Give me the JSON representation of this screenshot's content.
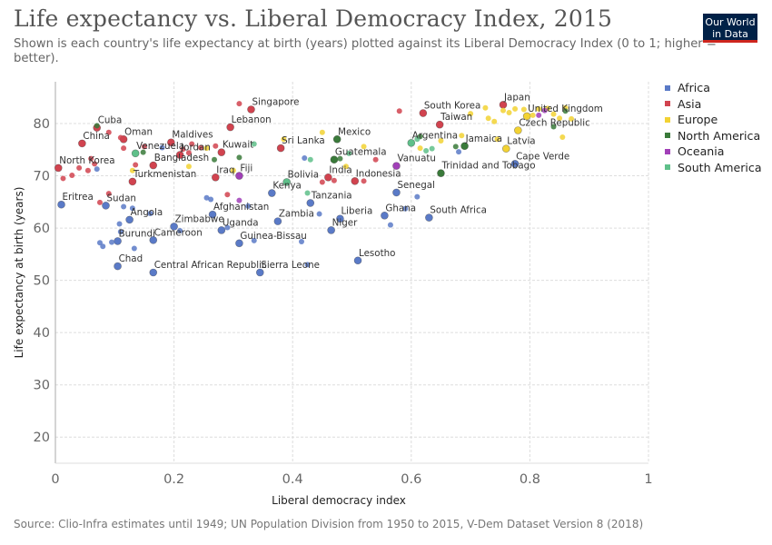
{
  "title": "Life expectancy vs. Liberal Democracy Index, 2015",
  "subtitle": "Shown is each country's life expectancy at birth (years) plotted against its Liberal Democracy Index (0 to 1; higher = better).",
  "logo": {
    "line1": "Our World",
    "line2": "in Data"
  },
  "source": "Source: Clio-Infra estimates until 1949; UN Population Division from 1950 to 2015, V-Dem Dataset Version 8 (2018)",
  "colors": {
    "Africa": "#5a7ac7",
    "Asia": "#d1434f",
    "Europe": "#f2d233",
    "North America": "#3a7a3a",
    "Oceania": "#a140b8",
    "South America": "#5fc08a"
  },
  "chart_data": {
    "type": "scatter",
    "title": "Life expectancy vs. Liberal Democracy Index, 2015",
    "xlabel": "Liberal democracy index",
    "ylabel": "Life expectancy at birth (years)",
    "xlim": [
      0,
      1
    ],
    "ylim": [
      15,
      88
    ],
    "xticks": [
      0,
      0.2,
      0.4,
      0.6,
      0.8,
      1
    ],
    "xtick_labels": [
      "0",
      "0.2",
      "0.4",
      "0.6",
      "0.8",
      "1"
    ],
    "yticks": [
      20,
      30,
      40,
      50,
      60,
      70,
      80
    ],
    "ytick_labels": [
      "20",
      "30",
      "40",
      "50",
      "60",
      "70",
      "80"
    ],
    "grid": true,
    "legend_position": "right",
    "series": [
      {
        "name": "Africa",
        "points": [
          {
            "x": 0.01,
            "y": 64.5,
            "label": "Eritrea"
          },
          {
            "x": 0.085,
            "y": 64.3,
            "label": "Sudan"
          },
          {
            "x": 0.125,
            "y": 61.6,
            "label": "Angola"
          },
          {
            "x": 0.105,
            "y": 57.5,
            "label": "Burundi"
          },
          {
            "x": 0.105,
            "y": 52.7,
            "label": "Chad"
          },
          {
            "x": 0.165,
            "y": 57.7,
            "label": "Cameroon"
          },
          {
            "x": 0.165,
            "y": 51.5,
            "label": "Central African Republic"
          },
          {
            "x": 0.2,
            "y": 60.3,
            "label": "Zimbabwe"
          },
          {
            "x": 0.265,
            "y": 62.6,
            "label": "Afghanistan"
          },
          {
            "x": 0.28,
            "y": 59.6,
            "label": "Uganda"
          },
          {
            "x": 0.31,
            "y": 57.1,
            "label": "Guinea-Bissau"
          },
          {
            "x": 0.345,
            "y": 51.5,
            "label": "Sierra Leone"
          },
          {
            "x": 0.365,
            "y": 66.7,
            "label": "Kenya"
          },
          {
            "x": 0.375,
            "y": 61.3,
            "label": "Zambia"
          },
          {
            "x": 0.43,
            "y": 64.8,
            "label": "Tanzania"
          },
          {
            "x": 0.465,
            "y": 59.6,
            "label": "Niger"
          },
          {
            "x": 0.48,
            "y": 61.8,
            "label": "Liberia"
          },
          {
            "x": 0.51,
            "y": 53.8,
            "label": "Lesotho"
          },
          {
            "x": 0.555,
            "y": 62.4,
            "label": "Ghana"
          },
          {
            "x": 0.575,
            "y": 66.8,
            "label": "Senegal"
          },
          {
            "x": 0.63,
            "y": 62,
            "label": "South Africa"
          },
          {
            "x": 0.775,
            "y": 72.3,
            "label": "Cape Verde"
          },
          {
            "x": 0.075,
            "y": 57.2
          },
          {
            "x": 0.08,
            "y": 56.5
          },
          {
            "x": 0.095,
            "y": 57.3
          },
          {
            "x": 0.11,
            "y": 59.3
          },
          {
            "x": 0.108,
            "y": 60.8
          },
          {
            "x": 0.115,
            "y": 64.1
          },
          {
            "x": 0.13,
            "y": 63.8
          },
          {
            "x": 0.133,
            "y": 56.1
          },
          {
            "x": 0.16,
            "y": 62.8
          },
          {
            "x": 0.18,
            "y": 75.4
          },
          {
            "x": 0.21,
            "y": 59.5
          },
          {
            "x": 0.255,
            "y": 65.8
          },
          {
            "x": 0.262,
            "y": 65.5
          },
          {
            "x": 0.29,
            "y": 60.1
          },
          {
            "x": 0.325,
            "y": 64.2
          },
          {
            "x": 0.335,
            "y": 57.6
          },
          {
            "x": 0.415,
            "y": 57.4
          },
          {
            "x": 0.42,
            "y": 73.4
          },
          {
            "x": 0.425,
            "y": 53
          },
          {
            "x": 0.445,
            "y": 62.7
          },
          {
            "x": 0.565,
            "y": 60.6
          },
          {
            "x": 0.59,
            "y": 63.7
          },
          {
            "x": 0.61,
            "y": 66
          },
          {
            "x": 0.68,
            "y": 74.6
          },
          {
            "x": 0.07,
            "y": 71.3
          }
        ]
      },
      {
        "name": "Asia",
        "points": [
          {
            "x": 0.005,
            "y": 71.5,
            "label": "North Korea"
          },
          {
            "x": 0.045,
            "y": 76.2,
            "label": "China"
          },
          {
            "x": 0.07,
            "y": 79.2,
            "label": "Cuba"
          },
          {
            "x": 0.115,
            "y": 77,
            "label": "Oman"
          },
          {
            "x": 0.13,
            "y": 68.9,
            "label": "Turkmenistan"
          },
          {
            "x": 0.165,
            "y": 72,
            "label": "Bangladesh"
          },
          {
            "x": 0.195,
            "y": 76.4,
            "label": "Maldives"
          },
          {
            "x": 0.21,
            "y": 74,
            "label": "Jordan"
          },
          {
            "x": 0.28,
            "y": 74.5,
            "label": "Kuwait"
          },
          {
            "x": 0.27,
            "y": 69.7,
            "label": "Iraq"
          },
          {
            "x": 0.295,
            "y": 79.3,
            "label": "Lebanon"
          },
          {
            "x": 0.31,
            "y": 83.8
          },
          {
            "x": 0.33,
            "y": 82.7,
            "label": "Singapore"
          },
          {
            "x": 0.38,
            "y": 75.3,
            "label": "Sri Lanka"
          },
          {
            "x": 0.46,
            "y": 69.7,
            "label": "India"
          },
          {
            "x": 0.505,
            "y": 69,
            "label": "Indonesia"
          },
          {
            "x": 0.62,
            "y": 82,
            "label": "South Korea"
          },
          {
            "x": 0.648,
            "y": 79.8,
            "label": "Taiwan"
          },
          {
            "x": 0.755,
            "y": 83.6,
            "label": "Japan"
          },
          {
            "x": 0.013,
            "y": 69.5
          },
          {
            "x": 0.028,
            "y": 70.1
          },
          {
            "x": 0.04,
            "y": 71.5
          },
          {
            "x": 0.055,
            "y": 71
          },
          {
            "x": 0.06,
            "y": 73.3
          },
          {
            "x": 0.066,
            "y": 72.3
          },
          {
            "x": 0.09,
            "y": 78.3
          },
          {
            "x": 0.11,
            "y": 77.3
          },
          {
            "x": 0.115,
            "y": 75.3
          },
          {
            "x": 0.135,
            "y": 72.1
          },
          {
            "x": 0.15,
            "y": 75.6
          },
          {
            "x": 0.215,
            "y": 75.1
          },
          {
            "x": 0.225,
            "y": 74.4
          },
          {
            "x": 0.23,
            "y": 76.1
          },
          {
            "x": 0.245,
            "y": 75.4
          },
          {
            "x": 0.27,
            "y": 75.7
          },
          {
            "x": 0.29,
            "y": 66.4
          },
          {
            "x": 0.45,
            "y": 68.8
          },
          {
            "x": 0.47,
            "y": 69.1
          },
          {
            "x": 0.52,
            "y": 69
          },
          {
            "x": 0.54,
            "y": 73.1
          },
          {
            "x": 0.58,
            "y": 82.4
          },
          {
            "x": 0.075,
            "y": 64.9
          },
          {
            "x": 0.09,
            "y": 66.6
          }
        ]
      },
      {
        "name": "Europe",
        "points": [
          {
            "x": 0.78,
            "y": 78.7,
            "label": "Czech Republic"
          },
          {
            "x": 0.795,
            "y": 81.4,
            "label": "United Kingdom"
          },
          {
            "x": 0.76,
            "y": 75.2,
            "label": "Latvia"
          },
          {
            "x": 0.13,
            "y": 71
          },
          {
            "x": 0.225,
            "y": 71.8
          },
          {
            "x": 0.255,
            "y": 75.3
          },
          {
            "x": 0.3,
            "y": 71
          },
          {
            "x": 0.385,
            "y": 77
          },
          {
            "x": 0.45,
            "y": 78.3
          },
          {
            "x": 0.49,
            "y": 71.8
          },
          {
            "x": 0.52,
            "y": 75.6
          },
          {
            "x": 0.615,
            "y": 75.3
          },
          {
            "x": 0.65,
            "y": 76.7
          },
          {
            "x": 0.685,
            "y": 77.7
          },
          {
            "x": 0.725,
            "y": 83
          },
          {
            "x": 0.73,
            "y": 81
          },
          {
            "x": 0.74,
            "y": 80.4
          },
          {
            "x": 0.755,
            "y": 82.5
          },
          {
            "x": 0.765,
            "y": 82.1
          },
          {
            "x": 0.775,
            "y": 82.8
          },
          {
            "x": 0.79,
            "y": 82.7
          },
          {
            "x": 0.805,
            "y": 81.6
          },
          {
            "x": 0.815,
            "y": 82.8
          },
          {
            "x": 0.83,
            "y": 82.9
          },
          {
            "x": 0.84,
            "y": 81.8
          },
          {
            "x": 0.85,
            "y": 81
          },
          {
            "x": 0.855,
            "y": 77.4
          },
          {
            "x": 0.86,
            "y": 83
          },
          {
            "x": 0.87,
            "y": 80.9
          },
          {
            "x": 0.745,
            "y": 77
          },
          {
            "x": 0.7,
            "y": 81.9
          }
        ]
      },
      {
        "name": "North America",
        "points": [
          {
            "x": 0.47,
            "y": 73.1,
            "label": "Guatemala"
          },
          {
            "x": 0.475,
            "y": 77,
            "label": "Mexico"
          },
          {
            "x": 0.65,
            "y": 70.5,
            "label": "Trinidad and Tobago"
          },
          {
            "x": 0.69,
            "y": 75.7,
            "label": "Jamaica"
          },
          {
            "x": 0.07,
            "y": 79.6
          },
          {
            "x": 0.148,
            "y": 74.5
          },
          {
            "x": 0.268,
            "y": 73.1
          },
          {
            "x": 0.31,
            "y": 73.5
          },
          {
            "x": 0.48,
            "y": 73.3
          },
          {
            "x": 0.615,
            "y": 77.5
          },
          {
            "x": 0.675,
            "y": 75.6
          },
          {
            "x": 0.84,
            "y": 79.4
          },
          {
            "x": 0.86,
            "y": 82.4
          }
        ]
      },
      {
        "name": "Oceania",
        "points": [
          {
            "x": 0.31,
            "y": 70,
            "label": "Fiji"
          },
          {
            "x": 0.575,
            "y": 71.9,
            "label": "Vanuatu"
          },
          {
            "x": 0.31,
            "y": 65.3
          },
          {
            "x": 0.825,
            "y": 82.5
          },
          {
            "x": 0.815,
            "y": 81.6
          }
        ]
      },
      {
        "name": "South America",
        "points": [
          {
            "x": 0.135,
            "y": 74.3,
            "label": "Venezuela"
          },
          {
            "x": 0.39,
            "y": 68.8,
            "label": "Bolivia"
          },
          {
            "x": 0.6,
            "y": 76.3,
            "label": "Argentina"
          },
          {
            "x": 0.335,
            "y": 76.1
          },
          {
            "x": 0.425,
            "y": 66.7
          },
          {
            "x": 0.43,
            "y": 73.1
          },
          {
            "x": 0.495,
            "y": 74.3
          },
          {
            "x": 0.625,
            "y": 74.8
          },
          {
            "x": 0.635,
            "y": 75.2
          },
          {
            "x": 0.61,
            "y": 77
          }
        ]
      }
    ]
  }
}
